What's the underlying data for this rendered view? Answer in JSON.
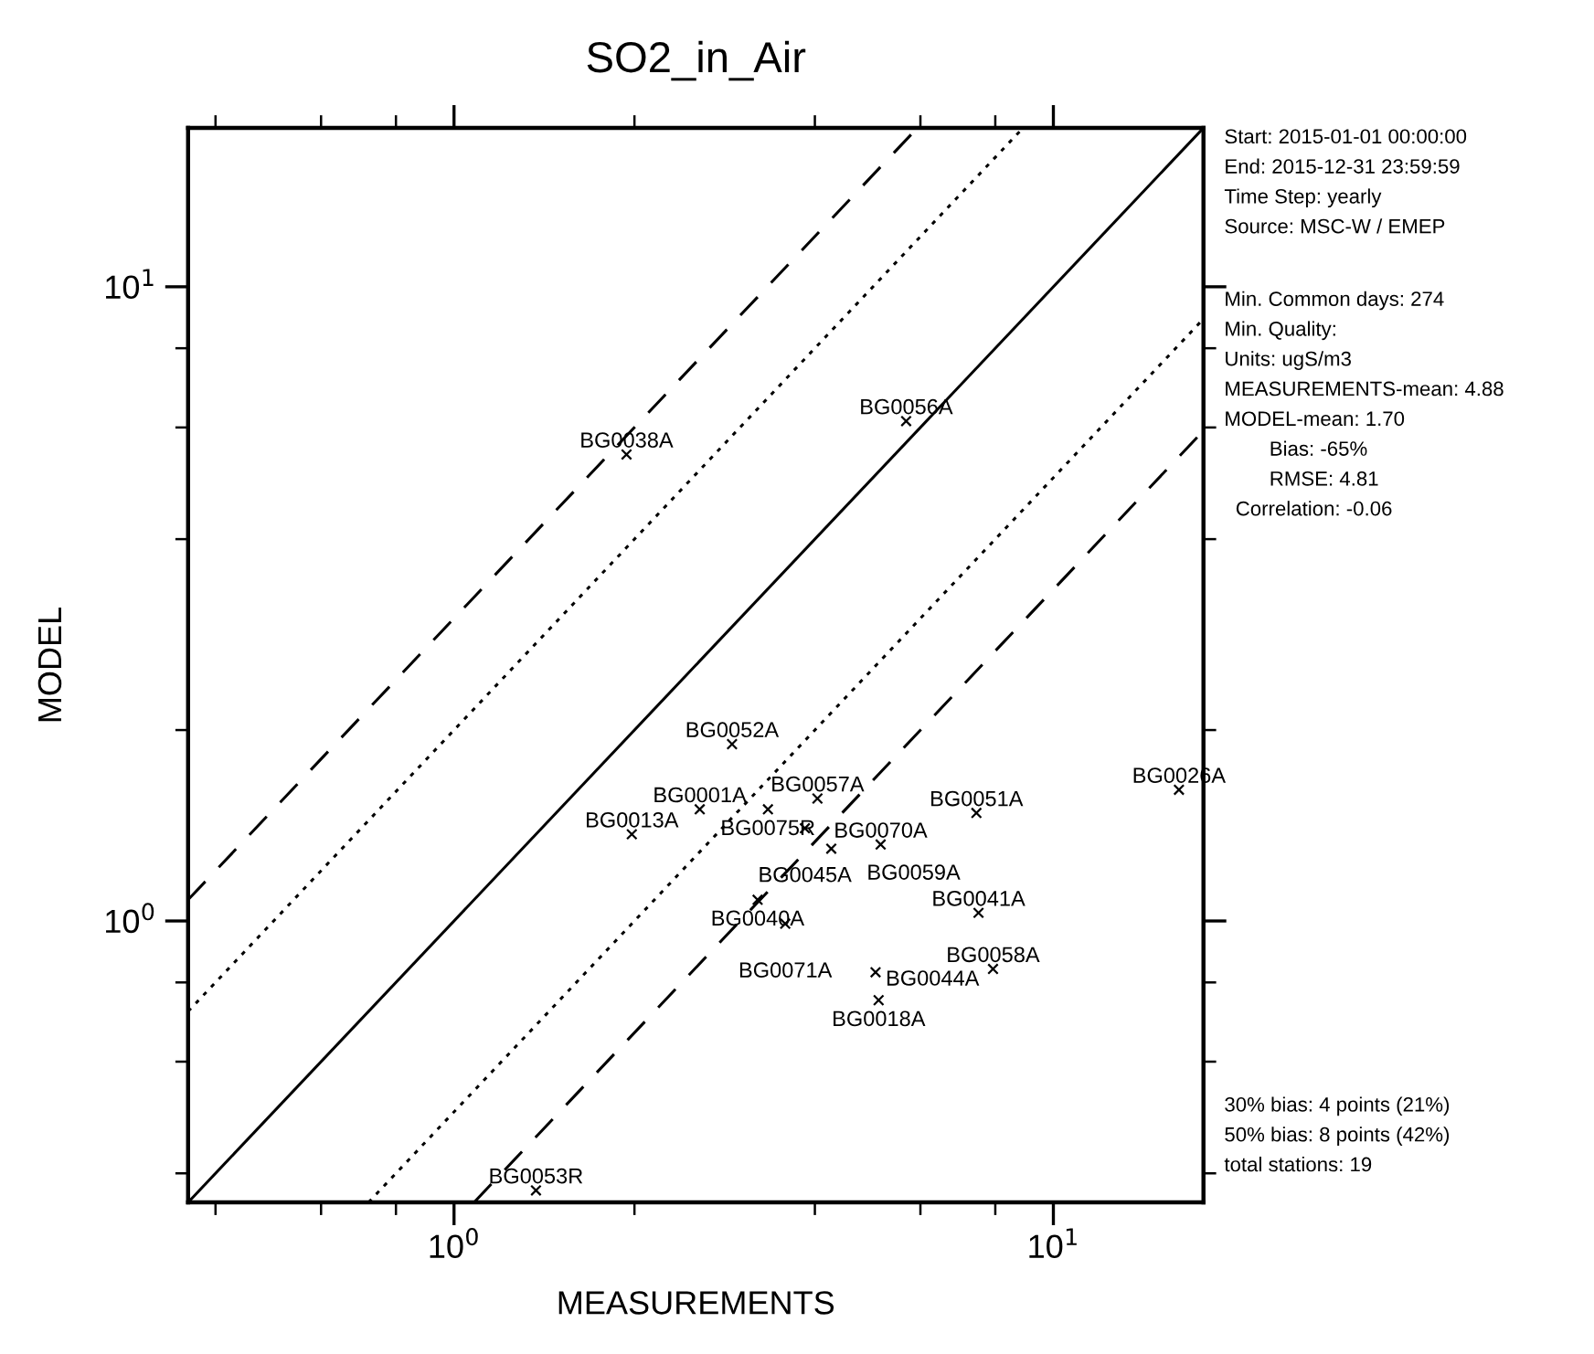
{
  "chart_data": {
    "type": "scatter",
    "title": "SO2_in_Air",
    "xlabel": "MEASUREMENTS",
    "ylabel": "MODEL",
    "log": "xy",
    "xlim": [
      0.36,
      17.8
    ],
    "ylim": [
      0.36,
      17.8
    ],
    "xticks": [
      {
        "value": 0.4,
        "label": null
      },
      {
        "value": 0.6,
        "label": null
      },
      {
        "value": 0.8,
        "label": null
      },
      {
        "value": 1,
        "label": "10$^{0}$"
      },
      {
        "value": 2,
        "label": null
      },
      {
        "value": 4,
        "label": null
      },
      {
        "value": 6,
        "label": null
      },
      {
        "value": 8,
        "label": null
      },
      {
        "value": 10,
        "label": "10$^{1}$"
      }
    ],
    "yticks": [
      {
        "value": 0.4,
        "label": null
      },
      {
        "value": 0.6,
        "label": null
      },
      {
        "value": 0.8,
        "label": null
      },
      {
        "value": 1,
        "label": "10$^{0}$"
      },
      {
        "value": 2,
        "label": null
      },
      {
        "value": 4,
        "label": null
      },
      {
        "value": 6,
        "label": null
      },
      {
        "value": 8,
        "label": null
      },
      {
        "value": 10,
        "label": "10$^{1}$"
      }
    ],
    "grid": false,
    "legend": false,
    "series": [
      {
        "color": "#000000",
        "marker": "cross",
        "x": [
          1.94,
          5.68,
          2.91,
          16.2,
          7.44,
          4.04,
          2.57,
          3.34,
          1.98,
          3.85,
          4.26,
          5.15,
          3.21,
          3.57,
          7.5,
          5.05,
          7.93,
          5.11,
          1.37
        ],
        "values": [
          5.44,
          6.14,
          1.9,
          1.61,
          1.48,
          1.56,
          1.5,
          1.5,
          1.37,
          1.4,
          1.3,
          1.32,
          1.08,
          0.99,
          1.03,
          0.83,
          0.84,
          0.75,
          0.376
        ]
      },
      {
        "type": "line",
        "color": "#000000",
        "line_style": "solid",
        "x": [
          0.36,
          17.8
        ],
        "values": [
          0.36,
          17.8
        ]
      },
      {
        "type": "line",
        "color": "#000000",
        "line_style": "dotted",
        "x": [
          0.36,
          8.9
        ],
        "values": [
          0.72,
          17.8
        ]
      },
      {
        "type": "line",
        "color": "#000000",
        "line_style": "dotted",
        "x": [
          0.72,
          17.8
        ],
        "values": [
          0.36,
          8.9
        ]
      },
      {
        "type": "line",
        "color": "#000000",
        "line_style": "dashed",
        "x": [
          0.36,
          5.93
        ],
        "values": [
          1.08,
          17.8
        ]
      },
      {
        "type": "line",
        "color": "#000000",
        "line_style": "dashed",
        "x": [
          1.08,
          17.8
        ],
        "values": [
          0.36,
          5.93
        ]
      }
    ],
    "annotations": [
      {
        "text": "BG0038A",
        "x": 1.94,
        "y": 5.44
      },
      {
        "text": "BG0056A",
        "x": 5.68,
        "y": 6.14
      },
      {
        "text": "BG0052A",
        "x": 2.91,
        "y": 1.9
      },
      {
        "text": "BG0026A",
        "x": 16.2,
        "y": 1.61
      },
      {
        "text": "BG0051A",
        "x": 7.44,
        "y": 1.48
      },
      {
        "text": "BG0057A",
        "x": 4.04,
        "y": 1.56
      },
      {
        "text": "BG0001A",
        "x": 2.57,
        "y": 1.5
      },
      {
        "text": "BG0075R",
        "x": 3.34,
        "y": 1.5
      },
      {
        "text": "BG0013A",
        "x": 1.98,
        "y": 1.37
      },
      {
        "text": "BG0045A",
        "x": 3.85,
        "y": 1.4
      },
      {
        "text": "BG0059A",
        "x": 4.26,
        "y": 1.3
      },
      {
        "text": "BG0070A",
        "x": 5.15,
        "y": 1.32
      },
      {
        "text": "BG0040A",
        "x": 3.21,
        "y": 1.08
      },
      {
        "text": "BG0071A",
        "x": 3.57,
        "y": 0.99
      },
      {
        "text": "BG0041A",
        "x": 7.5,
        "y": 1.03
      },
      {
        "text": "BG0044A",
        "x": 5.05,
        "y": 0.83
      },
      {
        "text": "BG0058A",
        "x": 7.93,
        "y": 0.84
      },
      {
        "text": "BG0018A",
        "x": 5.11,
        "y": 0.75
      },
      {
        "text": "BG0053R",
        "x": 1.37,
        "y": 0.376
      },
      "Start: 2015-01-01 00:00:00\nEnd: 2015-12-31 23:59:59\nTime Step: yearly\nSource: MSC-W / EMEP",
      "Min. Common days: 274\nMin. Quality:\nUnits: ugS/m3\nMEASUREMENTS-mean: 4.88\nMODEL-mean: 1.70\n        Bias: -65%\n        RMSE: 4.81\n  Correlation: -0.06",
      "30% bias: 4 points (21%)\n50% bias: 8 points (42%)\ntotal stations: 19"
    ]
  }
}
